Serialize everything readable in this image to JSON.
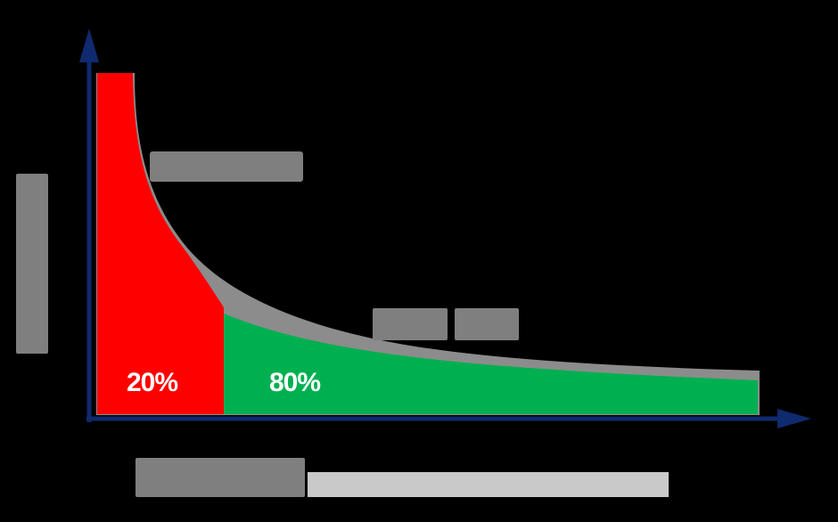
{
  "diagram": {
    "title": "",
    "head_label": "",
    "tail_label": "",
    "y_axis_label": "",
    "x_axis_label": "",
    "x_axis_sublabel": ""
  },
  "chart_data": {
    "type": "area",
    "title": "",
    "xlabel": "",
    "ylabel": "",
    "grid": false,
    "regions": [
      {
        "label": "20%",
        "share_of_x": 0.2,
        "color": "#ff0000"
      },
      {
        "label": "80%",
        "share_of_x": 0.8,
        "color": "#00b050"
      }
    ]
  },
  "colors": {
    "background": "#000000",
    "axis": "#0f2a6e",
    "head_fill": "#ff0000",
    "tail_fill": "#00b050",
    "curve_outline": "#8c8c8c",
    "placeholder_dark": "#7f7f7f",
    "placeholder_light": "#c9c9c9"
  }
}
